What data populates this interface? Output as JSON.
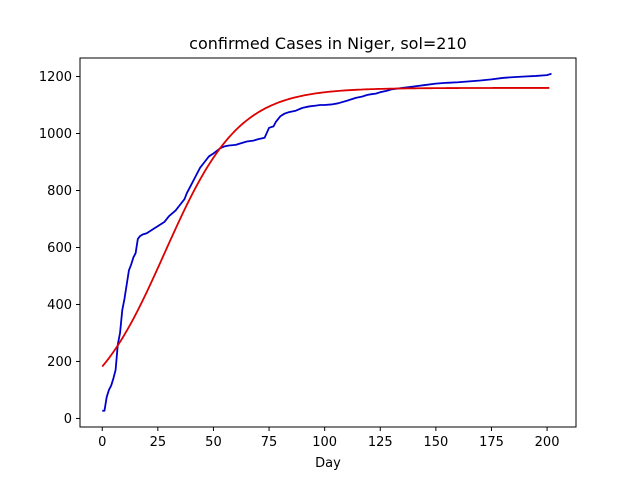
{
  "chart_data": {
    "type": "line",
    "title": "confirmed Cases in Niger, sol=210",
    "xlabel": "Day",
    "ylabel": "",
    "xlim": [
      -10,
      213
    ],
    "ylim": [
      -30,
      1265
    ],
    "xticks": [
      0,
      25,
      50,
      75,
      100,
      125,
      150,
      175,
      200
    ],
    "yticks": [
      0,
      200,
      400,
      600,
      800,
      1000,
      1200
    ],
    "grid": false,
    "legend": "none",
    "series": [
      {
        "color": "#0000cc",
        "x": [
          0,
          1,
          2,
          3,
          4,
          5,
          6,
          7,
          8,
          9,
          10,
          11,
          12,
          13,
          14,
          15,
          16,
          17,
          18,
          20,
          22,
          25,
          28,
          30,
          33,
          35,
          37,
          38,
          40,
          42,
          44,
          46,
          48,
          50,
          53,
          55,
          57,
          60,
          62,
          65,
          68,
          70,
          73,
          75,
          77,
          78,
          80,
          82,
          84,
          87,
          90,
          93,
          96,
          98,
          100,
          103,
          106,
          110,
          114,
          117,
          119,
          121,
          123,
          125,
          128,
          130,
          135,
          140,
          145,
          150,
          155,
          160,
          165,
          170,
          175,
          180,
          185,
          190,
          195,
          200,
          202
        ],
        "y": [
          27,
          27,
          75,
          100,
          115,
          140,
          170,
          260,
          300,
          380,
          420,
          470,
          520,
          540,
          565,
          580,
          630,
          640,
          645,
          650,
          660,
          675,
          690,
          710,
          730,
          750,
          770,
          790,
          820,
          850,
          880,
          900,
          920,
          930,
          948,
          955,
          958,
          960,
          965,
          972,
          975,
          980,
          985,
          1020,
          1025,
          1040,
          1060,
          1070,
          1075,
          1080,
          1090,
          1095,
          1098,
          1100,
          1100,
          1102,
          1106,
          1115,
          1125,
          1130,
          1135,
          1138,
          1140,
          1145,
          1150,
          1155,
          1160,
          1165,
          1170,
          1175,
          1178,
          1180,
          1183,
          1186,
          1190,
          1195,
          1198,
          1200,
          1202,
          1205,
          1210
        ]
      },
      {
        "color": "#dd0000",
        "model": "logistic",
        "K": 1160,
        "r": 0.06,
        "x0": 28
      }
    ]
  }
}
